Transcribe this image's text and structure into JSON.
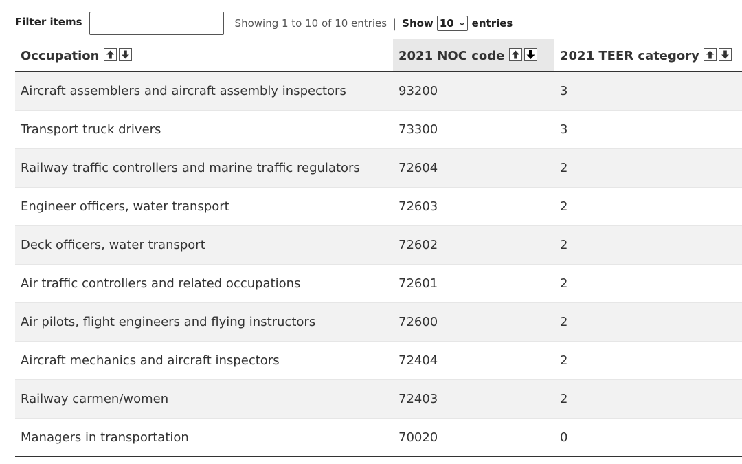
{
  "toolbar": {
    "filter_label": "Filter items",
    "filter_value": "",
    "showing_text": "Showing 1 to 10 of 10 entries",
    "show_label": "Show",
    "entries_value": "10",
    "entries_label": "entries"
  },
  "table": {
    "columns": [
      {
        "label": "Occupation"
      },
      {
        "label": "2021 NOC code"
      },
      {
        "label": "2021 TEER category"
      }
    ],
    "rows": [
      {
        "occupation": "Aircraft assemblers and aircraft assembly inspectors",
        "noc": "93200",
        "teer": "3"
      },
      {
        "occupation": "Transport truck drivers",
        "noc": "73300",
        "teer": "3"
      },
      {
        "occupation": "Railway traffic controllers and marine traffic regulators",
        "noc": "72604",
        "teer": "2"
      },
      {
        "occupation": "Engineer officers, water transport",
        "noc": "72603",
        "teer": "2"
      },
      {
        "occupation": "Deck officers, water transport",
        "noc": "72602",
        "teer": "2"
      },
      {
        "occupation": "Air traffic controllers and related occupations",
        "noc": "72601",
        "teer": "2"
      },
      {
        "occupation": "Air pilots, flight engineers and flying instructors",
        "noc": "72600",
        "teer": "2"
      },
      {
        "occupation": "Aircraft mechanics and aircraft inspectors",
        "noc": "72404",
        "teer": "2"
      },
      {
        "occupation": "Railway carmen/women",
        "noc": "72403",
        "teer": "2"
      },
      {
        "occupation": "Managers in transportation",
        "noc": "70020",
        "teer": "0"
      }
    ]
  },
  "icons": {
    "sort_ascending": "arrow-up-icon",
    "sort_descending": "arrow-down-icon",
    "select_chevron": "chevron-down-icon"
  },
  "colors": {
    "sorted_header_bg": "#e8e8e8",
    "striped_row_bg": "#f2f2f2"
  }
}
